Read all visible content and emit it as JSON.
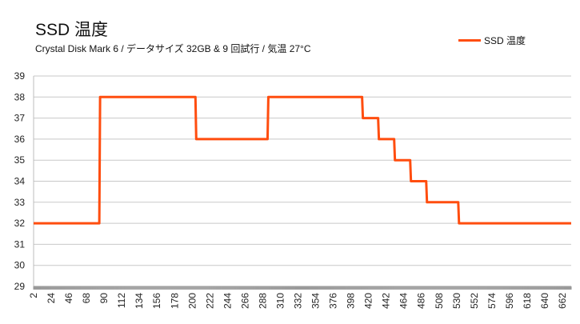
{
  "chart_data": {
    "type": "line",
    "title": "SSD 温度",
    "subtitle": "Crystal Disk Mark 6 /  データサイズ 32GB & 9 回試行  /  気温 27°C",
    "xlabel": "",
    "ylabel": "",
    "ylim": [
      29,
      39
    ],
    "xlim": [
      2,
      673
    ],
    "y_ticks": [
      29,
      30,
      31,
      32,
      33,
      34,
      35,
      36,
      37,
      38,
      39
    ],
    "x_ticks": [
      2,
      24,
      46,
      68,
      90,
      112,
      134,
      156,
      178,
      200,
      222,
      244,
      266,
      288,
      310,
      332,
      354,
      376,
      398,
      420,
      442,
      464,
      486,
      508,
      530,
      552,
      574,
      596,
      618,
      640,
      662
    ],
    "grid": "horizontal",
    "legend_position": "top-right",
    "series": [
      {
        "name": "SSD 温度",
        "color": "#ff4d0f",
        "points": [
          [
            2,
            32
          ],
          [
            84,
            32
          ],
          [
            85,
            38
          ],
          [
            204,
            38
          ],
          [
            205,
            36
          ],
          [
            294,
            36
          ],
          [
            295,
            38
          ],
          [
            412,
            38
          ],
          [
            413,
            37
          ],
          [
            432,
            37
          ],
          [
            433,
            36
          ],
          [
            452,
            36
          ],
          [
            453,
            35
          ],
          [
            472,
            35
          ],
          [
            473,
            34
          ],
          [
            492,
            34
          ],
          [
            493,
            33
          ],
          [
            532,
            33
          ],
          [
            533,
            32
          ],
          [
            673,
            32
          ]
        ]
      }
    ]
  }
}
